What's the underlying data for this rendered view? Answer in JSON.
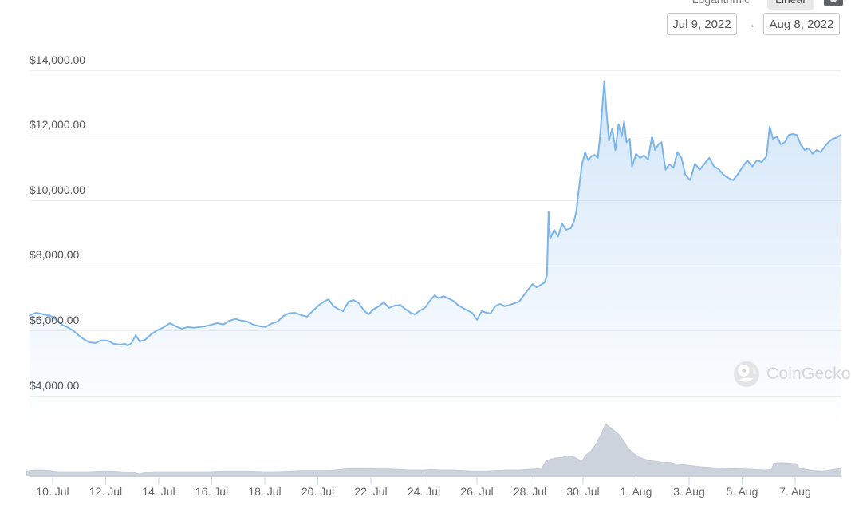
{
  "controls": {
    "scale_toggle": {
      "options": [
        {
          "label": "Logarithmic",
          "selected": false
        },
        {
          "label": "Linear",
          "selected": true
        }
      ]
    },
    "date_range": {
      "from": "Jul 9, 2022",
      "separator": "→",
      "to": "Aug 8, 2022"
    }
  },
  "watermark": {
    "text": "CoinGecko"
  },
  "colors": {
    "price_line": "#7cb5ec",
    "volume_fill": "#cdd3dd",
    "gridline": "#efefef",
    "axis": "#ccd6eb",
    "axis_text": "#666666"
  },
  "chart_data": {
    "type": "line",
    "title": "",
    "legend": "none",
    "grid": "horizontal",
    "x_axis": {
      "range": [
        "Jul 9, 2022",
        "Aug 8, 2022"
      ],
      "tick_labels": [
        "10. Jul",
        "12. Jul",
        "14. Jul",
        "16. Jul",
        "18. Jul",
        "20. Jul",
        "22. Jul",
        "24. Jul",
        "26. Jul",
        "28. Jul",
        "30. Jul",
        "1. Aug",
        "3. Aug",
        "5. Aug",
        "7. Aug"
      ],
      "tick_days": [
        1,
        3,
        5,
        7,
        9,
        11,
        13,
        15,
        17,
        19,
        21,
        23,
        25,
        27,
        29
      ]
    },
    "y_axis": {
      "tick_labels": [
        "$14,000.00",
        "$12,000.00",
        "$10,000.00",
        "$8,000.00",
        "$6,000.00",
        "$4,000.00"
      ],
      "grid_values": [
        14000,
        12000,
        10000,
        8000,
        6000,
        4000
      ],
      "min": 4000,
      "max": 14000,
      "unit": "USD"
    },
    "series": [
      {
        "name": "price",
        "type": "line",
        "color": "#7cb5ec",
        "x_unit": "days since Jul 9, 2022",
        "points": [
          [
            0.13,
            6470
          ],
          [
            0.37,
            6550
          ],
          [
            0.67,
            6500
          ],
          [
            0.88,
            6470
          ],
          [
            1.12,
            6350
          ],
          [
            1.36,
            6180
          ],
          [
            1.6,
            6090
          ],
          [
            1.81,
            5980
          ],
          [
            2.02,
            5830
          ],
          [
            2.17,
            5740
          ],
          [
            2.38,
            5640
          ],
          [
            2.62,
            5620
          ],
          [
            2.83,
            5700
          ],
          [
            3.08,
            5690
          ],
          [
            3.29,
            5600
          ],
          [
            3.53,
            5570
          ],
          [
            3.74,
            5590
          ],
          [
            3.83,
            5540
          ],
          [
            3.98,
            5620
          ],
          [
            4.13,
            5860
          ],
          [
            4.28,
            5670
          ],
          [
            4.49,
            5720
          ],
          [
            4.73,
            5900
          ],
          [
            4.94,
            6010
          ],
          [
            5.18,
            6100
          ],
          [
            5.42,
            6230
          ],
          [
            5.63,
            6140
          ],
          [
            5.87,
            6060
          ],
          [
            6.08,
            6110
          ],
          [
            6.32,
            6090
          ],
          [
            6.53,
            6110
          ],
          [
            6.77,
            6140
          ],
          [
            6.98,
            6180
          ],
          [
            7.2,
            6230
          ],
          [
            7.44,
            6190
          ],
          [
            7.65,
            6300
          ],
          [
            7.89,
            6360
          ],
          [
            8.1,
            6310
          ],
          [
            8.34,
            6280
          ],
          [
            8.58,
            6180
          ],
          [
            8.79,
            6140
          ],
          [
            9.03,
            6110
          ],
          [
            9.24,
            6210
          ],
          [
            9.48,
            6280
          ],
          [
            9.69,
            6440
          ],
          [
            9.9,
            6530
          ],
          [
            10.14,
            6550
          ],
          [
            10.36,
            6480
          ],
          [
            10.59,
            6430
          ],
          [
            10.8,
            6600
          ],
          [
            11.05,
            6790
          ],
          [
            11.26,
            6910
          ],
          [
            11.41,
            6960
          ],
          [
            11.59,
            6750
          ],
          [
            11.8,
            6650
          ],
          [
            11.95,
            6600
          ],
          [
            12.16,
            6890
          ],
          [
            12.34,
            6940
          ],
          [
            12.55,
            6840
          ],
          [
            12.76,
            6600
          ],
          [
            12.91,
            6500
          ],
          [
            13.09,
            6650
          ],
          [
            13.3,
            6750
          ],
          [
            13.48,
            6870
          ],
          [
            13.69,
            6700
          ],
          [
            13.9,
            6770
          ],
          [
            14.11,
            6790
          ],
          [
            14.29,
            6670
          ],
          [
            14.5,
            6550
          ],
          [
            14.65,
            6500
          ],
          [
            14.86,
            6620
          ],
          [
            15.04,
            6700
          ],
          [
            15.25,
            6940
          ],
          [
            15.41,
            7090
          ],
          [
            15.56,
            6990
          ],
          [
            15.74,
            7060
          ],
          [
            15.92,
            6990
          ],
          [
            16.1,
            6920
          ],
          [
            16.28,
            6790
          ],
          [
            16.46,
            6700
          ],
          [
            16.64,
            6620
          ],
          [
            16.82,
            6550
          ],
          [
            17.0,
            6330
          ],
          [
            17.18,
            6600
          ],
          [
            17.36,
            6550
          ],
          [
            17.51,
            6530
          ],
          [
            17.69,
            6750
          ],
          [
            17.87,
            6820
          ],
          [
            18.05,
            6750
          ],
          [
            18.23,
            6790
          ],
          [
            18.41,
            6840
          ],
          [
            18.59,
            6890
          ],
          [
            18.77,
            7090
          ],
          [
            18.95,
            7280
          ],
          [
            19.1,
            7430
          ],
          [
            19.25,
            7330
          ],
          [
            19.4,
            7400
          ],
          [
            19.55,
            7480
          ],
          [
            19.64,
            7700
          ],
          [
            19.7,
            9660
          ],
          [
            19.76,
            8820
          ],
          [
            19.91,
            9100
          ],
          [
            20.06,
            8890
          ],
          [
            20.21,
            9290
          ],
          [
            20.36,
            9100
          ],
          [
            20.54,
            9150
          ],
          [
            20.66,
            9360
          ],
          [
            20.75,
            9680
          ],
          [
            20.84,
            10330
          ],
          [
            20.96,
            11110
          ],
          [
            21.08,
            11480
          ],
          [
            21.2,
            11230
          ],
          [
            21.32,
            11360
          ],
          [
            21.44,
            11400
          ],
          [
            21.56,
            11310
          ],
          [
            21.65,
            12040
          ],
          [
            21.74,
            13000
          ],
          [
            21.8,
            13670
          ],
          [
            21.89,
            12670
          ],
          [
            21.98,
            11840
          ],
          [
            22.1,
            12210
          ],
          [
            22.22,
            11550
          ],
          [
            22.34,
            12340
          ],
          [
            22.46,
            11960
          ],
          [
            22.55,
            12430
          ],
          [
            22.64,
            11790
          ],
          [
            22.76,
            11890
          ],
          [
            22.85,
            11040
          ],
          [
            23.0,
            11430
          ],
          [
            23.15,
            11310
          ],
          [
            23.3,
            11380
          ],
          [
            23.45,
            11260
          ],
          [
            23.6,
            11960
          ],
          [
            23.72,
            11550
          ],
          [
            23.84,
            11720
          ],
          [
            23.96,
            11790
          ],
          [
            24.11,
            10940
          ],
          [
            24.26,
            11110
          ],
          [
            24.41,
            11010
          ],
          [
            24.56,
            11480
          ],
          [
            24.71,
            11310
          ],
          [
            24.86,
            10790
          ],
          [
            25.04,
            10620
          ],
          [
            25.22,
            11130
          ],
          [
            25.4,
            10940
          ],
          [
            25.58,
            11130
          ],
          [
            25.76,
            11310
          ],
          [
            25.94,
            11040
          ],
          [
            26.12,
            10960
          ],
          [
            26.3,
            10790
          ],
          [
            26.48,
            10690
          ],
          [
            26.66,
            10620
          ],
          [
            26.84,
            10810
          ],
          [
            27.02,
            11040
          ],
          [
            27.2,
            11230
          ],
          [
            27.38,
            11040
          ],
          [
            27.56,
            11230
          ],
          [
            27.74,
            11180
          ],
          [
            27.92,
            11360
          ],
          [
            28.04,
            12280
          ],
          [
            28.16,
            11890
          ],
          [
            28.31,
            11960
          ],
          [
            28.46,
            11720
          ],
          [
            28.61,
            11790
          ],
          [
            28.76,
            12010
          ],
          [
            28.91,
            12040
          ],
          [
            29.06,
            12010
          ],
          [
            29.21,
            11720
          ],
          [
            29.36,
            11550
          ],
          [
            29.51,
            11600
          ],
          [
            29.66,
            11430
          ],
          [
            29.81,
            11550
          ],
          [
            29.96,
            11480
          ],
          [
            30.11,
            11650
          ],
          [
            30.26,
            11790
          ],
          [
            30.41,
            11890
          ],
          [
            30.56,
            11930
          ],
          [
            30.71,
            12010
          ]
        ]
      },
      {
        "name": "volume",
        "type": "area",
        "color": "#cdd3dd",
        "scale": "relative, peak = 1.0 on 30. Jul",
        "points": [
          [
            0.0,
            0.1
          ],
          [
            0.3,
            0.12
          ],
          [
            0.6,
            0.12
          ],
          [
            0.9,
            0.11
          ],
          [
            1.2,
            0.09
          ],
          [
            1.6,
            0.09
          ],
          [
            2.0,
            0.09
          ],
          [
            2.4,
            0.09
          ],
          [
            2.8,
            0.1
          ],
          [
            3.2,
            0.1
          ],
          [
            3.6,
            0.09
          ],
          [
            4.0,
            0.08
          ],
          [
            4.3,
            0.04
          ],
          [
            4.5,
            0.08
          ],
          [
            4.9,
            0.09
          ],
          [
            5.4,
            0.09
          ],
          [
            5.9,
            0.09
          ],
          [
            6.4,
            0.09
          ],
          [
            6.9,
            0.09
          ],
          [
            7.4,
            0.1
          ],
          [
            7.9,
            0.1
          ],
          [
            8.4,
            0.1
          ],
          [
            8.9,
            0.09
          ],
          [
            9.4,
            0.09
          ],
          [
            9.9,
            0.1
          ],
          [
            10.4,
            0.11
          ],
          [
            10.9,
            0.11
          ],
          [
            11.4,
            0.11
          ],
          [
            11.9,
            0.13
          ],
          [
            12.1,
            0.15
          ],
          [
            12.5,
            0.15
          ],
          [
            12.9,
            0.15
          ],
          [
            13.3,
            0.14
          ],
          [
            13.7,
            0.14
          ],
          [
            14.1,
            0.13
          ],
          [
            14.5,
            0.12
          ],
          [
            14.9,
            0.12
          ],
          [
            15.3,
            0.13
          ],
          [
            15.7,
            0.12
          ],
          [
            16.1,
            0.12
          ],
          [
            16.5,
            0.11
          ],
          [
            16.9,
            0.1
          ],
          [
            17.3,
            0.1
          ],
          [
            17.7,
            0.11
          ],
          [
            18.1,
            0.12
          ],
          [
            18.5,
            0.12
          ],
          [
            18.9,
            0.13
          ],
          [
            19.2,
            0.14
          ],
          [
            19.45,
            0.16
          ],
          [
            19.6,
            0.29
          ],
          [
            19.8,
            0.33
          ],
          [
            20.0,
            0.35
          ],
          [
            20.2,
            0.36
          ],
          [
            20.4,
            0.38
          ],
          [
            20.6,
            0.38
          ],
          [
            20.8,
            0.33
          ],
          [
            20.95,
            0.28
          ],
          [
            21.1,
            0.4
          ],
          [
            21.3,
            0.48
          ],
          [
            21.5,
            0.62
          ],
          [
            21.7,
            0.82
          ],
          [
            21.85,
            1.0
          ],
          [
            22.0,
            0.94
          ],
          [
            22.15,
            0.88
          ],
          [
            22.3,
            0.82
          ],
          [
            22.5,
            0.7
          ],
          [
            22.7,
            0.53
          ],
          [
            22.9,
            0.44
          ],
          [
            23.1,
            0.37
          ],
          [
            23.3,
            0.33
          ],
          [
            23.5,
            0.3
          ],
          [
            23.8,
            0.28
          ],
          [
            24.0,
            0.26
          ],
          [
            24.2,
            0.27
          ],
          [
            24.5,
            0.24
          ],
          [
            24.8,
            0.22
          ],
          [
            25.1,
            0.2
          ],
          [
            25.5,
            0.18
          ],
          [
            26.0,
            0.16
          ],
          [
            26.5,
            0.15
          ],
          [
            27.0,
            0.14
          ],
          [
            27.5,
            0.13
          ],
          [
            27.9,
            0.12
          ],
          [
            28.1,
            0.13
          ],
          [
            28.2,
            0.25
          ],
          [
            28.5,
            0.26
          ],
          [
            28.8,
            0.25
          ],
          [
            29.05,
            0.24
          ],
          [
            29.15,
            0.16
          ],
          [
            29.4,
            0.13
          ],
          [
            29.7,
            0.11
          ],
          [
            30.0,
            0.1
          ],
          [
            30.2,
            0.11
          ],
          [
            30.45,
            0.13
          ],
          [
            30.71,
            0.15
          ]
        ]
      }
    ]
  }
}
